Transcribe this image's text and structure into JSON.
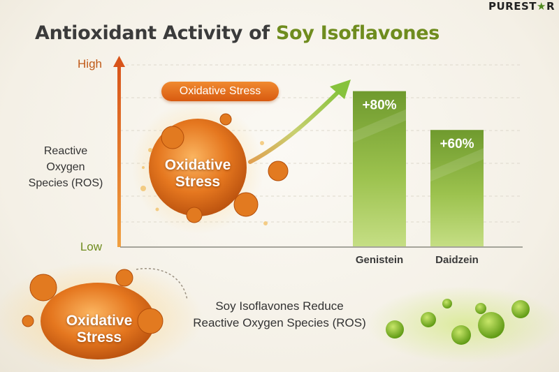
{
  "brand": {
    "text_before": "PUREST",
    "text_star": "★",
    "text_after": "R"
  },
  "title": {
    "prefix": "Antioxidant Activity of ",
    "highlight": "Soy Isoflavones"
  },
  "colors": {
    "accent_green": "#6f8c1e",
    "oxidative_orange": "#e06a18",
    "bar_green": "#7fa63a"
  },
  "oxidative_pill": "Oxidative Stress",
  "blob_top": {
    "line1": "Oxidative",
    "line2": "Stress"
  },
  "blob_bottom": {
    "line1": "Oxidative",
    "line2": "Stress"
  },
  "caption": {
    "line1": "Soy Isoflavones Reduce",
    "line2": "Reactive Oxygen Species (ROS)"
  },
  "chart_data": {
    "type": "bar",
    "y_axis": {
      "label_lines": [
        "Reactive",
        "Oxygen",
        "Species (ROS)"
      ],
      "top_label": "High",
      "bottom_label": "Low"
    },
    "grid": "horizontal dashed",
    "categories": [
      "Genistein",
      "Daidzein"
    ],
    "values": [
      80,
      60
    ],
    "value_labels": [
      "+80%",
      "+60%"
    ]
  }
}
